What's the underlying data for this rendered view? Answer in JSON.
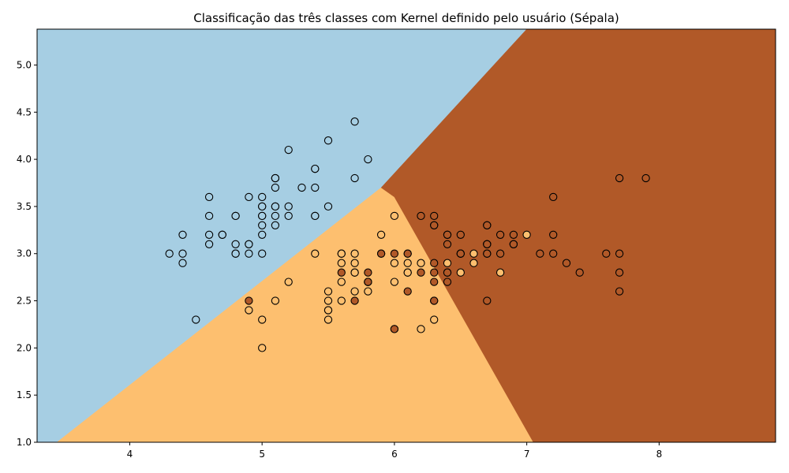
{
  "chart_data": {
    "type": "scatter",
    "title": "Classificação das três classes com Kernel definido pelo usuário (Sépala)",
    "xlabel": "",
    "ylabel": "",
    "xlim": [
      3.3,
      8.88
    ],
    "ylim": [
      1.0,
      5.38
    ],
    "x_ticks": [
      4,
      5,
      6,
      7,
      8
    ],
    "y_ticks": [
      1.0,
      1.5,
      2.0,
      2.5,
      3.0,
      3.5,
      4.0,
      4.5,
      5.0
    ],
    "grid": false,
    "legend": "none",
    "regions": [
      {
        "class": 0,
        "color": "#a6cee3",
        "polygon": [
          [
            3.3,
            5.38
          ],
          [
            7.0,
            5.38
          ],
          [
            5.9,
            3.7
          ],
          [
            3.45,
            1.0
          ],
          [
            3.3,
            1.0
          ]
        ]
      },
      {
        "class": 1,
        "color": "#fdbf6f",
        "polygon": [
          [
            3.45,
            1.0
          ],
          [
            5.9,
            3.7
          ],
          [
            6.0,
            3.6
          ],
          [
            7.05,
            1.0
          ]
        ]
      },
      {
        "class": 2,
        "color": "#b15928",
        "polygon": [
          [
            7.0,
            5.38
          ],
          [
            8.88,
            5.38
          ],
          [
            8.88,
            1.0
          ],
          [
            7.05,
            1.0
          ],
          [
            6.0,
            3.6
          ],
          [
            5.9,
            3.7
          ]
        ]
      }
    ],
    "series": [
      {
        "class": 0,
        "color": "#a6cee3",
        "points": [
          [
            5.1,
            3.5
          ],
          [
            4.9,
            3.0
          ],
          [
            4.7,
            3.2
          ],
          [
            4.6,
            3.1
          ],
          [
            5.0,
            3.6
          ],
          [
            5.4,
            3.9
          ],
          [
            4.6,
            3.4
          ],
          [
            5.0,
            3.4
          ],
          [
            4.4,
            2.9
          ],
          [
            4.9,
            3.1
          ],
          [
            5.4,
            3.7
          ],
          [
            4.8,
            3.4
          ],
          [
            4.8,
            3.0
          ],
          [
            4.3,
            3.0
          ],
          [
            5.8,
            4.0
          ],
          [
            5.7,
            4.4
          ],
          [
            5.4,
            3.9
          ],
          [
            5.1,
            3.5
          ],
          [
            5.7,
            3.8
          ],
          [
            5.1,
            3.8
          ],
          [
            5.4,
            3.4
          ],
          [
            5.1,
            3.7
          ],
          [
            4.6,
            3.6
          ],
          [
            5.1,
            3.3
          ],
          [
            4.8,
            3.4
          ],
          [
            5.0,
            3.0
          ],
          [
            5.0,
            3.4
          ],
          [
            5.2,
            3.5
          ],
          [
            5.2,
            3.4
          ],
          [
            4.7,
            3.2
          ],
          [
            4.8,
            3.1
          ],
          [
            5.4,
            3.4
          ],
          [
            5.2,
            4.1
          ],
          [
            5.5,
            4.2
          ],
          [
            4.9,
            3.1
          ],
          [
            5.0,
            3.2
          ],
          [
            5.5,
            3.5
          ],
          [
            4.9,
            3.6
          ],
          [
            4.4,
            3.0
          ],
          [
            5.1,
            3.4
          ],
          [
            5.0,
            3.5
          ],
          [
            4.5,
            2.3
          ],
          [
            4.4,
            3.2
          ],
          [
            5.0,
            3.5
          ],
          [
            5.1,
            3.8
          ],
          [
            4.8,
            3.0
          ],
          [
            5.1,
            3.8
          ],
          [
            4.6,
            3.2
          ],
          [
            5.3,
            3.7
          ],
          [
            5.0,
            3.3
          ]
        ]
      },
      {
        "class": 1,
        "color": "#fdbf6f",
        "points": [
          [
            7.0,
            3.2
          ],
          [
            6.4,
            3.2
          ],
          [
            6.9,
            3.1
          ],
          [
            5.5,
            2.3
          ],
          [
            6.5,
            2.8
          ],
          [
            5.7,
            2.8
          ],
          [
            6.3,
            3.3
          ],
          [
            4.9,
            2.4
          ],
          [
            6.6,
            2.9
          ],
          [
            5.2,
            2.7
          ],
          [
            5.0,
            2.0
          ],
          [
            5.9,
            3.0
          ],
          [
            6.0,
            2.2
          ],
          [
            6.1,
            2.9
          ],
          [
            5.6,
            2.9
          ],
          [
            6.7,
            3.1
          ],
          [
            5.6,
            3.0
          ],
          [
            5.8,
            2.7
          ],
          [
            6.2,
            2.2
          ],
          [
            5.6,
            2.5
          ],
          [
            5.9,
            3.2
          ],
          [
            6.1,
            2.8
          ],
          [
            6.3,
            2.5
          ],
          [
            6.1,
            2.8
          ],
          [
            6.4,
            2.9
          ],
          [
            6.6,
            3.0
          ],
          [
            6.8,
            2.8
          ],
          [
            6.7,
            3.0
          ],
          [
            6.0,
            2.9
          ],
          [
            5.7,
            2.6
          ],
          [
            5.5,
            2.4
          ],
          [
            5.5,
            2.4
          ],
          [
            5.8,
            2.7
          ],
          [
            6.0,
            2.7
          ],
          [
            5.4,
            3.0
          ],
          [
            6.0,
            3.4
          ],
          [
            6.7,
            3.1
          ],
          [
            6.3,
            2.3
          ],
          [
            5.6,
            3.0
          ],
          [
            5.5,
            2.5
          ],
          [
            5.5,
            2.6
          ],
          [
            6.1,
            3.0
          ],
          [
            5.8,
            2.6
          ],
          [
            5.0,
            2.3
          ],
          [
            5.6,
            2.7
          ],
          [
            5.7,
            3.0
          ],
          [
            5.7,
            2.9
          ],
          [
            6.2,
            2.9
          ],
          [
            5.1,
            2.5
          ],
          [
            5.7,
            2.8
          ]
        ]
      },
      {
        "class": 2,
        "color": "#b15928",
        "points": [
          [
            6.3,
            3.3
          ],
          [
            5.8,
            2.7
          ],
          [
            7.1,
            3.0
          ],
          [
            6.3,
            2.9
          ],
          [
            6.5,
            3.0
          ],
          [
            7.6,
            3.0
          ],
          [
            4.9,
            2.5
          ],
          [
            7.3,
            2.9
          ],
          [
            6.7,
            2.5
          ],
          [
            7.2,
            3.6
          ],
          [
            6.5,
            3.2
          ],
          [
            6.4,
            2.7
          ],
          [
            6.8,
            3.0
          ],
          [
            5.7,
            2.5
          ],
          [
            5.8,
            2.8
          ],
          [
            6.4,
            3.2
          ],
          [
            6.5,
            3.0
          ],
          [
            7.7,
            3.8
          ],
          [
            7.7,
            2.6
          ],
          [
            6.0,
            2.2
          ],
          [
            6.9,
            3.2
          ],
          [
            5.6,
            2.8
          ],
          [
            7.7,
            2.8
          ],
          [
            6.3,
            2.7
          ],
          [
            6.7,
            3.3
          ],
          [
            7.2,
            3.2
          ],
          [
            6.2,
            2.8
          ],
          [
            6.1,
            3.0
          ],
          [
            6.4,
            2.8
          ],
          [
            7.2,
            3.0
          ],
          [
            7.4,
            2.8
          ],
          [
            7.9,
            3.8
          ],
          [
            6.4,
            2.8
          ],
          [
            6.3,
            2.8
          ],
          [
            6.1,
            2.6
          ],
          [
            7.7,
            3.0
          ],
          [
            6.3,
            3.4
          ],
          [
            6.4,
            3.1
          ],
          [
            6.0,
            3.0
          ],
          [
            6.9,
            3.1
          ],
          [
            6.7,
            3.1
          ],
          [
            6.9,
            3.1
          ],
          [
            5.8,
            2.7
          ],
          [
            6.8,
            3.2
          ],
          [
            6.7,
            3.3
          ],
          [
            6.7,
            3.0
          ],
          [
            6.3,
            2.5
          ],
          [
            6.5,
            3.0
          ],
          [
            6.2,
            3.4
          ],
          [
            5.9,
            3.0
          ]
        ]
      }
    ]
  }
}
